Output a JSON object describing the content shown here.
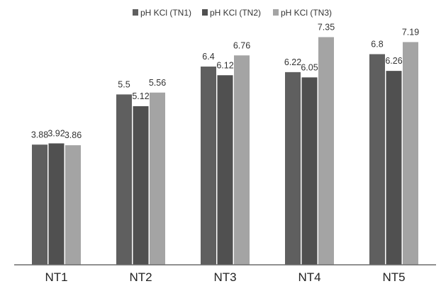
{
  "chart_data": {
    "type": "bar",
    "title": "",
    "xlabel": "",
    "ylabel": "",
    "categories": [
      "NT1",
      "NT2",
      "NT3",
      "NT4",
      "NT5"
    ],
    "series": [
      {
        "name": "pH KCl (TN1)",
        "color": "#5f5f5f",
        "values": [
          3.88,
          5.5,
          6.4,
          6.22,
          6.8
        ]
      },
      {
        "name": "pH KCl (TN2)",
        "color": "#505050",
        "values": [
          3.92,
          5.12,
          6.12,
          6.05,
          6.26
        ]
      },
      {
        "name": "pH KCl (TN3)",
        "color": "#a4a4a4",
        "values": [
          3.86,
          5.56,
          6.76,
          7.35,
          7.19
        ]
      }
    ],
    "data_labels": [
      [
        "3.88",
        "5.5",
        "6.4",
        "6.22",
        "6.8"
      ],
      [
        "3.92",
        "5.12",
        "6.12",
        "6.05",
        "6.26"
      ],
      [
        "3.86",
        "5.56",
        "6.76",
        "7.35",
        "7.19"
      ]
    ],
    "ylim": [
      0,
      8
    ],
    "grid": false,
    "legend_position": "top-center"
  }
}
